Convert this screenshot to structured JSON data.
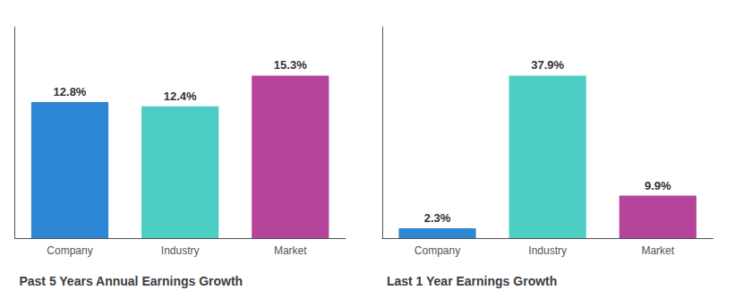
{
  "chart_data": [
    {
      "type": "bar",
      "title": "Past 5 Years Annual Earnings Growth",
      "categories": [
        "Company",
        "Industry",
        "Market"
      ],
      "values": [
        12.8,
        12.4,
        15.3
      ],
      "value_labels": [
        "12.8%",
        "12.4%",
        "15.3%"
      ],
      "colors": [
        "#2d86d4",
        "#4ecdc4",
        "#b5449b"
      ],
      "ylim": [
        0,
        19.89
      ],
      "data_labels": true,
      "tick_labels": "x",
      "grid": false
    },
    {
      "type": "bar",
      "title": "Last 1 Year Earnings Growth",
      "categories": [
        "Company",
        "Industry",
        "Market"
      ],
      "values": [
        2.3,
        37.9,
        9.9
      ],
      "value_labels": [
        "2.3%",
        "37.9%",
        "9.9%"
      ],
      "colors": [
        "#2d86d4",
        "#4ecdc4",
        "#b5449b"
      ],
      "ylim": [
        0,
        49.27
      ],
      "data_labels": true,
      "tick_labels": "x",
      "grid": false
    }
  ]
}
